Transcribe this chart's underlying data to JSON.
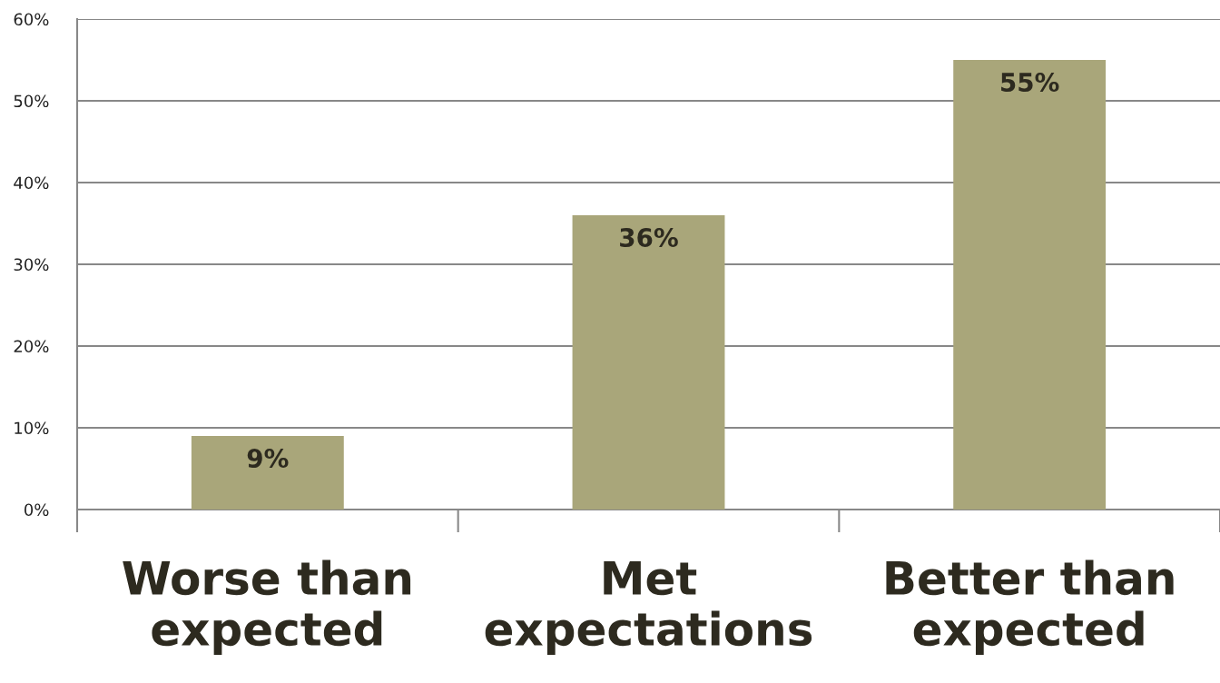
{
  "chart_data": {
    "type": "bar",
    "categories": [
      "Worse than\nexpected",
      "Met\nexpectations",
      "Better than\nexpected"
    ],
    "values": [
      9,
      36,
      55
    ],
    "color": "#a9a67a",
    "value_labels": [
      "9%",
      "36%",
      "55%"
    ],
    "ylim": [
      0,
      60
    ],
    "yticks": [
      {
        "value": 0,
        "label": "0%"
      },
      {
        "value": 10,
        "label": "10%"
      },
      {
        "value": 20,
        "label": "20%"
      },
      {
        "value": 30,
        "label": "30%"
      },
      {
        "value": 40,
        "label": "40%"
      },
      {
        "value": 50,
        "label": "50%"
      },
      {
        "value": 60,
        "label": "60%"
      }
    ],
    "grid": "y",
    "legend": false
  }
}
